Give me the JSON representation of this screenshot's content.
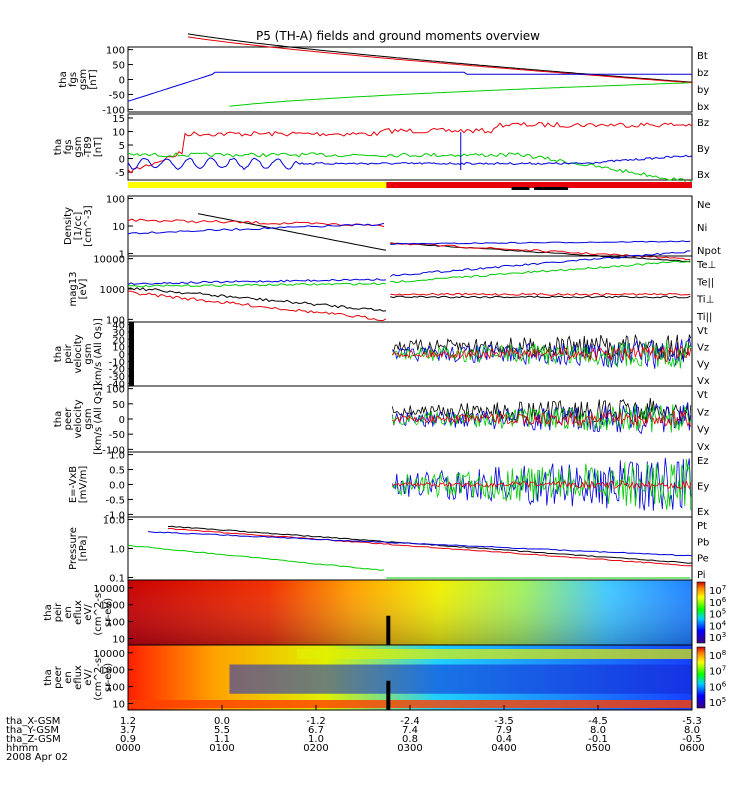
{
  "title": "P5 (TH-A) fields and ground moments overview",
  "colors": {
    "black": "#000000",
    "red": "#e8000b",
    "green": "#00cc00",
    "blue": "#0000dd",
    "yellow": "#ffff00"
  },
  "chart_data": [
    {
      "type": "line",
      "id": "fgs",
      "ylabel": [
        "tha",
        "fgs",
        "gsm",
        "[nT]"
      ],
      "yticks": [
        "100",
        "50",
        "0",
        "-50",
        "-100"
      ],
      "ylim": [
        -100,
        100
      ],
      "series": [
        {
          "name": "Bt",
          "color": "black"
        },
        {
          "name": "bz",
          "color": "red"
        },
        {
          "name": "by",
          "color": "green"
        },
        {
          "name": "bx",
          "color": "blue"
        }
      ]
    },
    {
      "type": "line",
      "id": "fgs_t89",
      "ylabel": [
        "tha",
        "fgs",
        "gsm",
        "-T89",
        "[nT]"
      ],
      "yticks": [
        "15",
        "10",
        "5",
        "0",
        "-5"
      ],
      "ylim": [
        -7,
        16
      ],
      "series": [
        {
          "name": "Bz",
          "color": "red"
        },
        {
          "name": "By",
          "color": "green"
        },
        {
          "name": "Bx",
          "color": "blue"
        }
      ]
    },
    {
      "type": "line",
      "id": "density",
      "ylabel": [
        "Density",
        "[1/cc]",
        "[cm^-3]"
      ],
      "yticks": [
        "100",
        "10",
        "1"
      ],
      "scale": "log",
      "series": [
        {
          "name": "Ne",
          "color": "red"
        },
        {
          "name": "Ni",
          "color": "black"
        },
        {
          "name": "Npot",
          "color": "blue"
        }
      ]
    },
    {
      "type": "line",
      "id": "temp",
      "ylabel": [
        "mag13",
        "[eV]"
      ],
      "yticks": [
        "10000",
        "1000",
        "100"
      ],
      "scale": "log",
      "series": [
        {
          "name": "Te⊥",
          "color": "red"
        },
        {
          "name": "Te||",
          "color": "black"
        },
        {
          "name": "Ti⊥",
          "color": "blue"
        },
        {
          "name": "Ti||",
          "color": "green"
        }
      ]
    },
    {
      "type": "line",
      "id": "peir_vel",
      "ylabel": [
        "tha",
        "peir",
        "velocity",
        "gsm",
        "[km/s (All Qs)]"
      ],
      "yticks": [
        "40",
        "30",
        "20",
        "10",
        "0",
        "-10",
        "-20",
        "-30",
        "-40"
      ],
      "ylim": [
        -40,
        40
      ],
      "series": [
        {
          "name": "Vt",
          "color": "black"
        },
        {
          "name": "Vz",
          "color": "red"
        },
        {
          "name": "Vy",
          "color": "green"
        },
        {
          "name": "Vx",
          "color": "blue"
        }
      ]
    },
    {
      "type": "line",
      "id": "peer_vel",
      "ylabel": [
        "tha",
        "peer",
        "velocity",
        "gsm",
        "[km/s (All Qs)]"
      ],
      "yticks": [
        "100",
        "50",
        "0",
        "-50",
        "-100"
      ],
      "ylim": [
        -100,
        100
      ],
      "series": [
        {
          "name": "Vt",
          "color": "black"
        },
        {
          "name": "Vz",
          "color": "red"
        },
        {
          "name": "Vy",
          "color": "green"
        },
        {
          "name": "Vx",
          "color": "blue"
        }
      ]
    },
    {
      "type": "line",
      "id": "efield",
      "ylabel": [
        "E=-VxB",
        "[mV/m]"
      ],
      "yticks": [
        "1.0",
        "0.5",
        "0.0",
        "-0.5",
        "-1.0"
      ],
      "ylim": [
        -1,
        1
      ],
      "series": [
        {
          "name": "Ez",
          "color": "red"
        },
        {
          "name": "Ey",
          "color": "green"
        },
        {
          "name": "Ex",
          "color": "blue"
        }
      ]
    },
    {
      "type": "line",
      "id": "pressure",
      "ylabel": [
        "Pressure",
        "[nPa]"
      ],
      "yticks": [
        "10.0",
        "1.0",
        "0.1"
      ],
      "scale": "log",
      "series": [
        {
          "name": "Pt",
          "color": "black"
        },
        {
          "name": "Pb",
          "color": "red"
        },
        {
          "name": "Pe",
          "color": "green"
        },
        {
          "name": "Pi",
          "color": "blue"
        }
      ]
    },
    {
      "type": "heatmap",
      "id": "peir_en",
      "ylabel": [
        "tha",
        "peir",
        "en",
        "eflux",
        "eV/",
        "(cm^2-s-",
        "sr-eV)"
      ],
      "yticks": [
        "10000",
        "1000",
        "100",
        "10"
      ],
      "colorbar": [
        "10^7",
        "10^6",
        "10^5",
        "10^4",
        "10^3"
      ]
    },
    {
      "type": "heatmap",
      "id": "peer_en",
      "ylabel": [
        "tha",
        "peer",
        "en",
        "eflux",
        "eV/",
        "(cm^2-s-",
        "sr-eV)"
      ],
      "yticks": [
        "10000",
        "1000",
        "100",
        "10"
      ],
      "colorbar": [
        "10^8",
        "10^7",
        "10^6",
        "10^5"
      ]
    }
  ],
  "xaxis": {
    "rows": [
      {
        "label": "tha_X-GSM",
        "values": [
          "1.2",
          "0.0",
          "-1.2",
          "-2.4",
          "-3.5",
          "-4.5",
          "-5.3"
        ]
      },
      {
        "label": "tha_Y-GSM",
        "values": [
          "3.7",
          "5.5",
          "6.7",
          "7.4",
          "7.9",
          "8.0",
          "8.0"
        ]
      },
      {
        "label": "tha_Z-GSM",
        "values": [
          "0.9",
          "1.1",
          "1.0",
          "0.8",
          "0.4",
          "-0.1",
          "-0.5"
        ]
      },
      {
        "label": "hhmm",
        "values": [
          "0000",
          "0100",
          "0200",
          "0300",
          "0400",
          "0500",
          "0600"
        ]
      }
    ],
    "date": "2008 Apr 02"
  }
}
